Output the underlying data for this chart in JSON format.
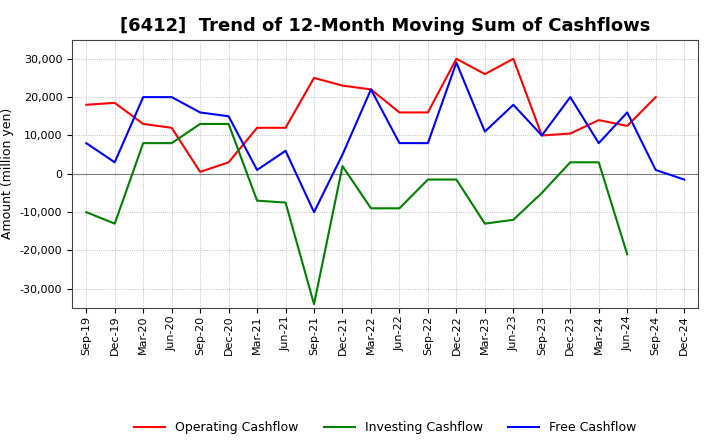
{
  "title": "[6412]  Trend of 12-Month Moving Sum of Cashflows",
  "ylabel": "Amount (million yen)",
  "labels": [
    "Sep-19",
    "Dec-19",
    "Mar-20",
    "Jun-20",
    "Sep-20",
    "Dec-20",
    "Mar-21",
    "Jun-21",
    "Sep-21",
    "Dec-21",
    "Mar-22",
    "Jun-22",
    "Sep-22",
    "Dec-22",
    "Mar-23",
    "Jun-23",
    "Sep-23",
    "Dec-23",
    "Mar-24",
    "Jun-24",
    "Sep-24",
    "Dec-24"
  ],
  "operating": [
    18000,
    18500,
    13000,
    12000,
    500,
    3000,
    12000,
    12000,
    25000,
    23000,
    22000,
    16000,
    16000,
    30000,
    26000,
    30000,
    10000,
    10500,
    14000,
    12500,
    20000,
    null
  ],
  "investing": [
    -10000,
    -13000,
    8000,
    8000,
    13000,
    13000,
    -7000,
    -7500,
    -34000,
    2000,
    -9000,
    -9000,
    -1500,
    -1500,
    -13000,
    -12000,
    -5000,
    3000,
    3000,
    -21000,
    null,
    null
  ],
  "free": [
    8000,
    3000,
    20000,
    20000,
    16000,
    15000,
    1000,
    6000,
    -10000,
    5000,
    22000,
    8000,
    8000,
    29000,
    11000,
    18000,
    10000,
    20000,
    8000,
    16000,
    1000,
    -1500
  ],
  "operating_color": "#ff0000",
  "investing_color": "#008000",
  "free_color": "#0000ff",
  "ylim": [
    -35000,
    35000
  ],
  "yticks": [
    -30000,
    -20000,
    -10000,
    0,
    10000,
    20000,
    30000
  ],
  "background_color": "#ffffff",
  "grid_color": "#b0b0b0",
  "title_fontsize": 13,
  "legend_fontsize": 9,
  "tick_fontsize": 8,
  "ylabel_fontsize": 9,
  "linewidth": 1.5
}
